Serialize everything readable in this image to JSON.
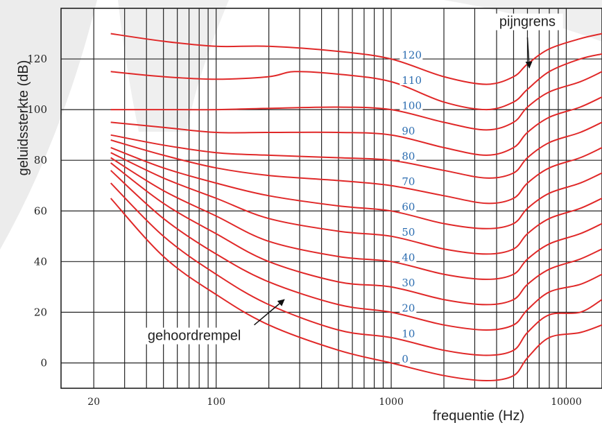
{
  "chart_data": {
    "type": "line",
    "title": "",
    "xlabel": "frequentie  (Hz)",
    "ylabel": "geluidssterkte  (dB)",
    "x_scale": "log",
    "xlim": [
      13,
      16000
    ],
    "ylim": [
      -10,
      140
    ],
    "x_ticks": [
      20,
      100,
      1000,
      10000
    ],
    "x_tick_labels": [
      "20",
      "100",
      "1000",
      "10000"
    ],
    "y_ticks": [
      0,
      20,
      40,
      60,
      80,
      100,
      120
    ],
    "y_tick_labels": [
      "0",
      "20",
      "40",
      "60",
      "80",
      "100",
      "120"
    ],
    "grid": true,
    "line_color": "#e02828",
    "label_color": "#2b6cb0",
    "series": [
      {
        "name": "0",
        "points": [
          [
            25,
            65
          ],
          [
            50,
            42
          ],
          [
            100,
            27
          ],
          [
            200,
            15
          ],
          [
            500,
            5
          ],
          [
            1000,
            0
          ],
          [
            2000,
            -5
          ],
          [
            3500,
            -7
          ],
          [
            5000,
            -5
          ],
          [
            6000,
            2
          ],
          [
            8000,
            10
          ],
          [
            12000,
            12
          ],
          [
            16000,
            15
          ]
        ]
      },
      {
        "name": "10",
        "points": [
          [
            25,
            71
          ],
          [
            50,
            50
          ],
          [
            100,
            35
          ],
          [
            200,
            23
          ],
          [
            500,
            13
          ],
          [
            1000,
            10
          ],
          [
            2000,
            5
          ],
          [
            3500,
            3
          ],
          [
            5000,
            5
          ],
          [
            6000,
            12
          ],
          [
            8000,
            19
          ],
          [
            12000,
            20
          ],
          [
            16000,
            25
          ]
        ]
      },
      {
        "name": "20",
        "points": [
          [
            25,
            76
          ],
          [
            50,
            57
          ],
          [
            100,
            43
          ],
          [
            200,
            32
          ],
          [
            500,
            23
          ],
          [
            1000,
            20
          ],
          [
            2000,
            15
          ],
          [
            3500,
            13
          ],
          [
            5000,
            15
          ],
          [
            6000,
            21
          ],
          [
            8000,
            28
          ],
          [
            12000,
            31
          ],
          [
            16000,
            35
          ]
        ]
      },
      {
        "name": "30",
        "points": [
          [
            25,
            79
          ],
          [
            50,
            63
          ],
          [
            100,
            51
          ],
          [
            200,
            40
          ],
          [
            500,
            32
          ],
          [
            1000,
            30
          ],
          [
            2000,
            25
          ],
          [
            3500,
            23
          ],
          [
            5000,
            25
          ],
          [
            6000,
            31
          ],
          [
            8000,
            37
          ],
          [
            12000,
            41
          ],
          [
            16000,
            45
          ]
        ]
      },
      {
        "name": "40",
        "points": [
          [
            25,
            81
          ],
          [
            50,
            68
          ],
          [
            100,
            58
          ],
          [
            200,
            48
          ],
          [
            500,
            42
          ],
          [
            1000,
            40
          ],
          [
            2000,
            35
          ],
          [
            3500,
            33
          ],
          [
            5000,
            35
          ],
          [
            6000,
            41
          ],
          [
            8000,
            47
          ],
          [
            12000,
            51
          ],
          [
            16000,
            55
          ]
        ]
      },
      {
        "name": "50",
        "points": [
          [
            25,
            83
          ],
          [
            50,
            73
          ],
          [
            100,
            65
          ],
          [
            200,
            57
          ],
          [
            500,
            52
          ],
          [
            1000,
            50
          ],
          [
            2000,
            45
          ],
          [
            3500,
            43
          ],
          [
            5000,
            45
          ],
          [
            6000,
            51
          ],
          [
            8000,
            57
          ],
          [
            12000,
            61
          ],
          [
            16000,
            65
          ]
        ]
      },
      {
        "name": "60",
        "points": [
          [
            25,
            85
          ],
          [
            50,
            77
          ],
          [
            100,
            71
          ],
          [
            200,
            66
          ],
          [
            500,
            62
          ],
          [
            1000,
            60
          ],
          [
            2000,
            55
          ],
          [
            3500,
            53
          ],
          [
            5000,
            55
          ],
          [
            6000,
            61
          ],
          [
            8000,
            67
          ],
          [
            12000,
            71
          ],
          [
            16000,
            75
          ]
        ]
      },
      {
        "name": "70",
        "points": [
          [
            25,
            88
          ],
          [
            50,
            82
          ],
          [
            100,
            77
          ],
          [
            200,
            74
          ],
          [
            500,
            72
          ],
          [
            1000,
            70
          ],
          [
            2000,
            66
          ],
          [
            3500,
            63
          ],
          [
            5000,
            65
          ],
          [
            6000,
            71
          ],
          [
            8000,
            77
          ],
          [
            12000,
            81
          ],
          [
            16000,
            85
          ]
        ]
      },
      {
        "name": "80",
        "points": [
          [
            25,
            90
          ],
          [
            50,
            86
          ],
          [
            100,
            83
          ],
          [
            200,
            82
          ],
          [
            500,
            81
          ],
          [
            1000,
            80
          ],
          [
            2000,
            76
          ],
          [
            3500,
            73
          ],
          [
            5000,
            75
          ],
          [
            6000,
            81
          ],
          [
            8000,
            87
          ],
          [
            12000,
            91
          ],
          [
            16000,
            95
          ]
        ]
      },
      {
        "name": "90",
        "points": [
          [
            25,
            95
          ],
          [
            50,
            93
          ],
          [
            100,
            91
          ],
          [
            200,
            91
          ],
          [
            500,
            91
          ],
          [
            1000,
            90
          ],
          [
            2000,
            85
          ],
          [
            3500,
            82
          ],
          [
            5000,
            85
          ],
          [
            6000,
            91
          ],
          [
            8000,
            97
          ],
          [
            12000,
            101
          ],
          [
            16000,
            105
          ]
        ]
      },
      {
        "name": "100",
        "points": [
          [
            25,
            100
          ],
          [
            50,
            100
          ],
          [
            100,
            100
          ],
          [
            200,
            100.5
          ],
          [
            500,
            101
          ],
          [
            1000,
            100
          ],
          [
            2000,
            95
          ],
          [
            3500,
            92
          ],
          [
            5000,
            95
          ],
          [
            6000,
            101
          ],
          [
            8000,
            107
          ],
          [
            12000,
            111
          ],
          [
            16000,
            115
          ]
        ]
      },
      {
        "name": "110",
        "points": [
          [
            25,
            115
          ],
          [
            50,
            113
          ],
          [
            100,
            112
          ],
          [
            200,
            113
          ],
          [
            280,
            115
          ],
          [
            500,
            114
          ],
          [
            1000,
            111
          ],
          [
            2000,
            103
          ],
          [
            3500,
            100
          ],
          [
            5000,
            103
          ],
          [
            6000,
            108
          ],
          [
            8000,
            115
          ],
          [
            12000,
            120
          ],
          [
            16000,
            122
          ]
        ]
      },
      {
        "name": "120",
        "points": [
          [
            25,
            130
          ],
          [
            50,
            127
          ],
          [
            100,
            125
          ],
          [
            200,
            125
          ],
          [
            500,
            123
          ],
          [
            1000,
            120
          ],
          [
            2000,
            113
          ],
          [
            3500,
            110
          ],
          [
            5000,
            113
          ],
          [
            6000,
            118
          ],
          [
            8000,
            124
          ],
          [
            12000,
            128
          ],
          [
            16000,
            130
          ]
        ]
      }
    ],
    "curve_labels": [
      {
        "text": "120",
        "x": 1150,
        "y": 121
      },
      {
        "text": "110",
        "x": 1150,
        "y": 111
      },
      {
        "text": "100",
        "x": 1150,
        "y": 101
      },
      {
        "text": "90",
        "x": 1150,
        "y": 91
      },
      {
        "text": "80",
        "x": 1150,
        "y": 81
      },
      {
        "text": "70",
        "x": 1150,
        "y": 71
      },
      {
        "text": "60",
        "x": 1150,
        "y": 61
      },
      {
        "text": "50",
        "x": 1150,
        "y": 51
      },
      {
        "text": "40",
        "x": 1150,
        "y": 41
      },
      {
        "text": "30",
        "x": 1150,
        "y": 31
      },
      {
        "text": "20",
        "x": 1150,
        "y": 21
      },
      {
        "text": "10",
        "x": 1150,
        "y": 11
      },
      {
        "text": "0",
        "x": 1150,
        "y": 1
      }
    ],
    "annotations": [
      {
        "text": "pijngrens",
        "text_x": 6000,
        "text_y": 133,
        "arrow_from": [
          6000,
          128.5
        ],
        "arrow_to": [
          6150,
          116.5
        ]
      },
      {
        "text": "gehoordrempel",
        "text_x": 75,
        "text_y": 9,
        "arrow_from": [
          165,
          15
        ],
        "arrow_to": [
          245,
          25
        ]
      }
    ]
  }
}
